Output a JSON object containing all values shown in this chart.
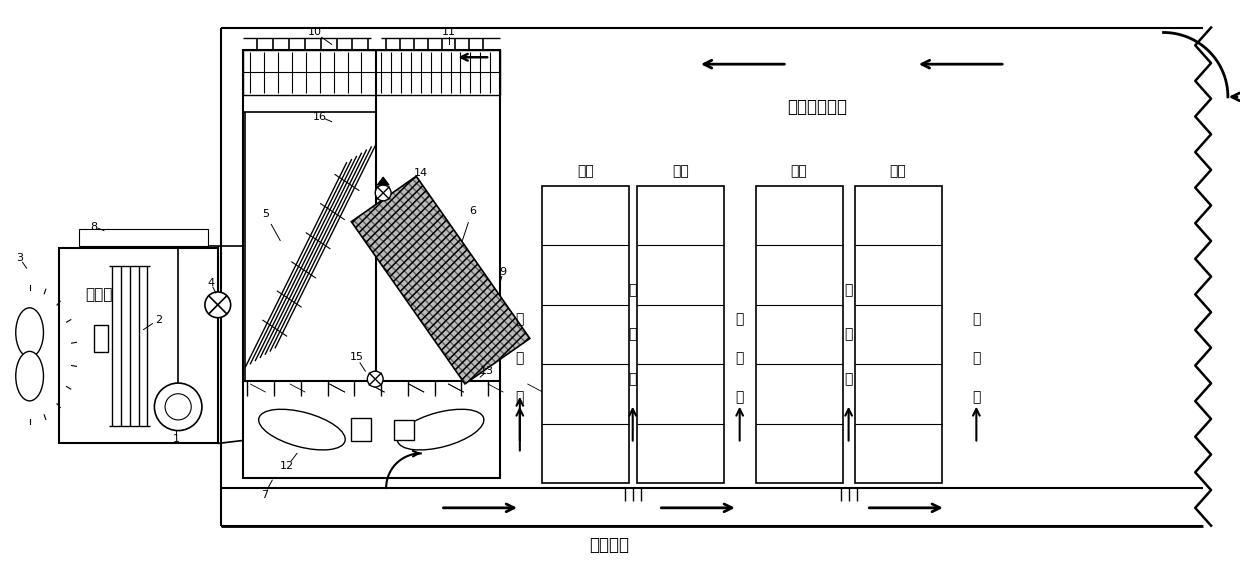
{
  "bg_color": "#ffffff",
  "label_shiwai": "室外侧",
  "label_shujujifang": "数据机房室内",
  "label_jiakongdiban": "架空地板",
  "label_jijia": "机架",
  "label_leng": "冷通道",
  "label_re": "热通道",
  "label_5": "5",
  "label_6": "6",
  "label_7": "7",
  "label_9": "9",
  "label_10": "10",
  "label_11": "11",
  "label_12": "12",
  "label_13": "13",
  "label_14": "14",
  "label_15": "15",
  "label_16": "16",
  "label_1": "1",
  "label_2": "2",
  "label_3": "3",
  "label_4": "4",
  "label_8": "8"
}
